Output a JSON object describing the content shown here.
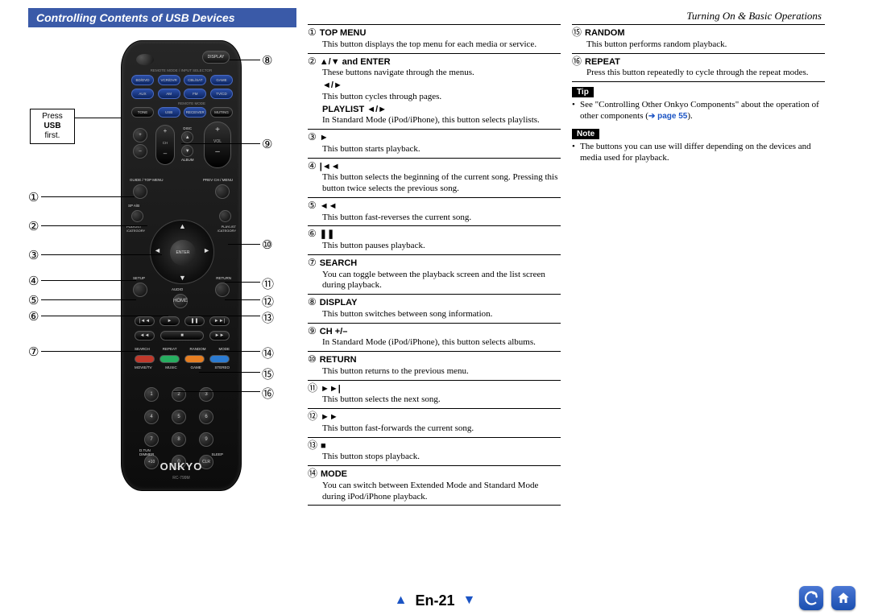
{
  "page": {
    "section_header": "Turning On & Basic Operations",
    "title": "Controlling Contents of USB Devices",
    "page_number": "En-21"
  },
  "remote": {
    "press_usb_label_line1": "Press",
    "press_usb_bold": "USB",
    "press_usb_label_line2": "first.",
    "brand": "ONKYO",
    "model": "RC-799M",
    "display_btn": "DISPLAY",
    "mode_label": "REMOTE MODE / INPUT SELECTOR",
    "row1": [
      "BD/DVD",
      "VCR/DVR",
      "CBL/SAT",
      "GAME"
    ],
    "row2": [
      "AUX",
      "AM",
      "FM",
      "TV/CD"
    ],
    "row3": [
      "TONE",
      "USB",
      "RECEIVER",
      "MUTING"
    ],
    "remote_mode_sub": "REMOTE MODE",
    "vol_labels": {
      "ch": "CH",
      "disc": "DISC",
      "album": "ALBUM",
      "vol": "VOL"
    },
    "nav_labels": {
      "tl": "GUIDE / TOP MENU",
      "tr": "PREV CH / MENU",
      "ml_top": "SP A/B",
      "mr_top": "ENTER",
      "ml_bot": "PLAYLIST←\\n/ CATEGORY",
      "mr_bot": "PLAYLIST→\\n/ CATEGORY",
      "bl": "SETUP",
      "bm": "AUDIO",
      "br": "RETURN",
      "enter": "ENTER",
      "home": "HOME"
    },
    "color_labels": [
      "SEARCH",
      "REPEAT",
      "RANDOM",
      "MODE"
    ],
    "color_sub": [
      "MOVIE/TV",
      "MUSIC",
      "GAME",
      "STEREO"
    ],
    "numpad": [
      "1",
      "2",
      "3",
      "4",
      "5",
      "6",
      "7",
      "8",
      "9",
      "+10",
      "0",
      "CLR"
    ],
    "bottom_left": "D.TUN\\nDIMMER",
    "bottom_right": "SLEEP"
  },
  "callouts_left": [
    "①",
    "②",
    "③",
    "④",
    "⑤",
    "⑥",
    "⑦"
  ],
  "callouts_right": [
    "⑧",
    "⑨",
    "⑩",
    "⑪",
    "⑫",
    "⑬",
    "⑭",
    "⑮",
    "⑯"
  ],
  "defs_col1": [
    {
      "n": "①",
      "h": "TOP MENU",
      "b": "This button displays the top menu for each media or service."
    },
    {
      "n": "②",
      "h": "▲/▼ and ENTER",
      "b": "These buttons navigate through the menus.",
      "subs": [
        {
          "h": "◄/►",
          "b": "This button cycles through pages."
        },
        {
          "h": "PLAYLIST ◄/►",
          "b": "In Standard Mode (iPod/iPhone), this button selects playlists."
        }
      ]
    },
    {
      "n": "③",
      "h": "►",
      "b": "This button starts playback."
    },
    {
      "n": "④",
      "h": "|◄◄",
      "b": "This button selects the beginning of the current song. Pressing this button twice selects the previous song."
    },
    {
      "n": "⑤",
      "h": "◄◄",
      "b": "This button fast-reverses the current song."
    },
    {
      "n": "⑥",
      "h": "❚❚",
      "b": "This button pauses playback."
    },
    {
      "n": "⑦",
      "h": "SEARCH",
      "b": "You can toggle between the playback screen and the list screen during playback."
    },
    {
      "n": "⑧",
      "h": "DISPLAY",
      "b": "This button switches between song information."
    },
    {
      "n": "⑨",
      "h": "CH +/–",
      "b": "In Standard Mode (iPod/iPhone), this button selects albums."
    },
    {
      "n": "⑩",
      "h": "RETURN",
      "b": "This button returns to the previous menu."
    },
    {
      "n": "⑪",
      "h": "►►|",
      "b": "This button selects the next song."
    },
    {
      "n": "⑫",
      "h": "►►",
      "b": "This button fast-forwards the current song."
    },
    {
      "n": "⑬",
      "h": "■",
      "b": "This button stops playback."
    },
    {
      "n": "⑭",
      "h": "MODE",
      "b": "You can switch between Extended Mode and Standard Mode during iPod/iPhone playback."
    }
  ],
  "defs_col2": [
    {
      "n": "⑮",
      "h": "RANDOM",
      "b": "This button performs random playback."
    },
    {
      "n": "⑯",
      "h": "REPEAT",
      "b": "Press this button repeatedly to cycle through the repeat modes."
    }
  ],
  "tip": {
    "label": "Tip",
    "bullet_prefix": "See \"Controlling Other Onkyo Components\" about the operation of other components (",
    "link": "➔ page 55",
    "bullet_suffix": ")."
  },
  "note": {
    "label": "Note",
    "bullet": "The buttons you can use will differ depending on the devices and media used for playback."
  },
  "colors": {
    "title_bar": "#3a5aa8",
    "link": "#1b54c4",
    "icon_grad_top": "#4a77d4",
    "icon_grad_bot": "#1b4fb0",
    "color_btns": [
      "#c0392b",
      "#27ae60",
      "#e67e22",
      "#2c7bd1"
    ]
  }
}
